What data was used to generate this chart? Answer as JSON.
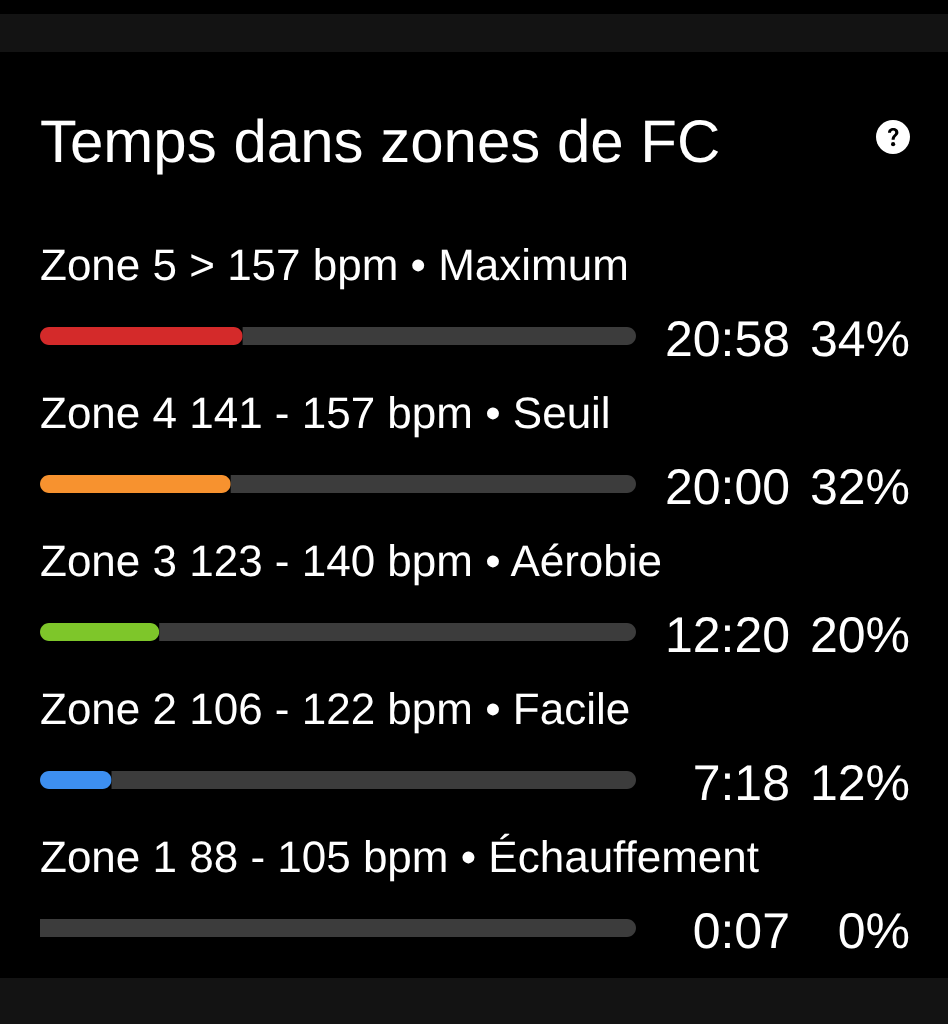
{
  "chart_data": {
    "type": "bar",
    "title": "Temps dans zones de FC",
    "orientation": "horizontal",
    "stacked": true,
    "tick_labels": false,
    "categories": [
      "Zone 5 > 157 bpm • Maximum",
      "Zone 4 141 - 157 bpm • Seuil",
      "Zone 3 123 - 140 bpm • Aérobie",
      "Zone 2 106 - 122 bpm • Facile",
      "Zone 1 88 - 105 bpm • Échauffement"
    ],
    "xlim": [
      0,
      100
    ],
    "series": [
      {
        "colors": [
          "#d42a2a",
          "#f7922f",
          "#7ec62a",
          "#3d8ff0",
          "#9e9e9e"
        ],
        "values": [
          34,
          32,
          20,
          12,
          0
        ],
        "value_labels": [
          "34%",
          "32%",
          "20%",
          "12%",
          "0%"
        ]
      },
      {
        "color": "#3c3c3c",
        "values": [
          66,
          68,
          80,
          88,
          100
        ]
      }
    ],
    "annotations": [
      "20:58",
      "20:00",
      "12:20",
      "7:18",
      "0:07"
    ]
  }
}
